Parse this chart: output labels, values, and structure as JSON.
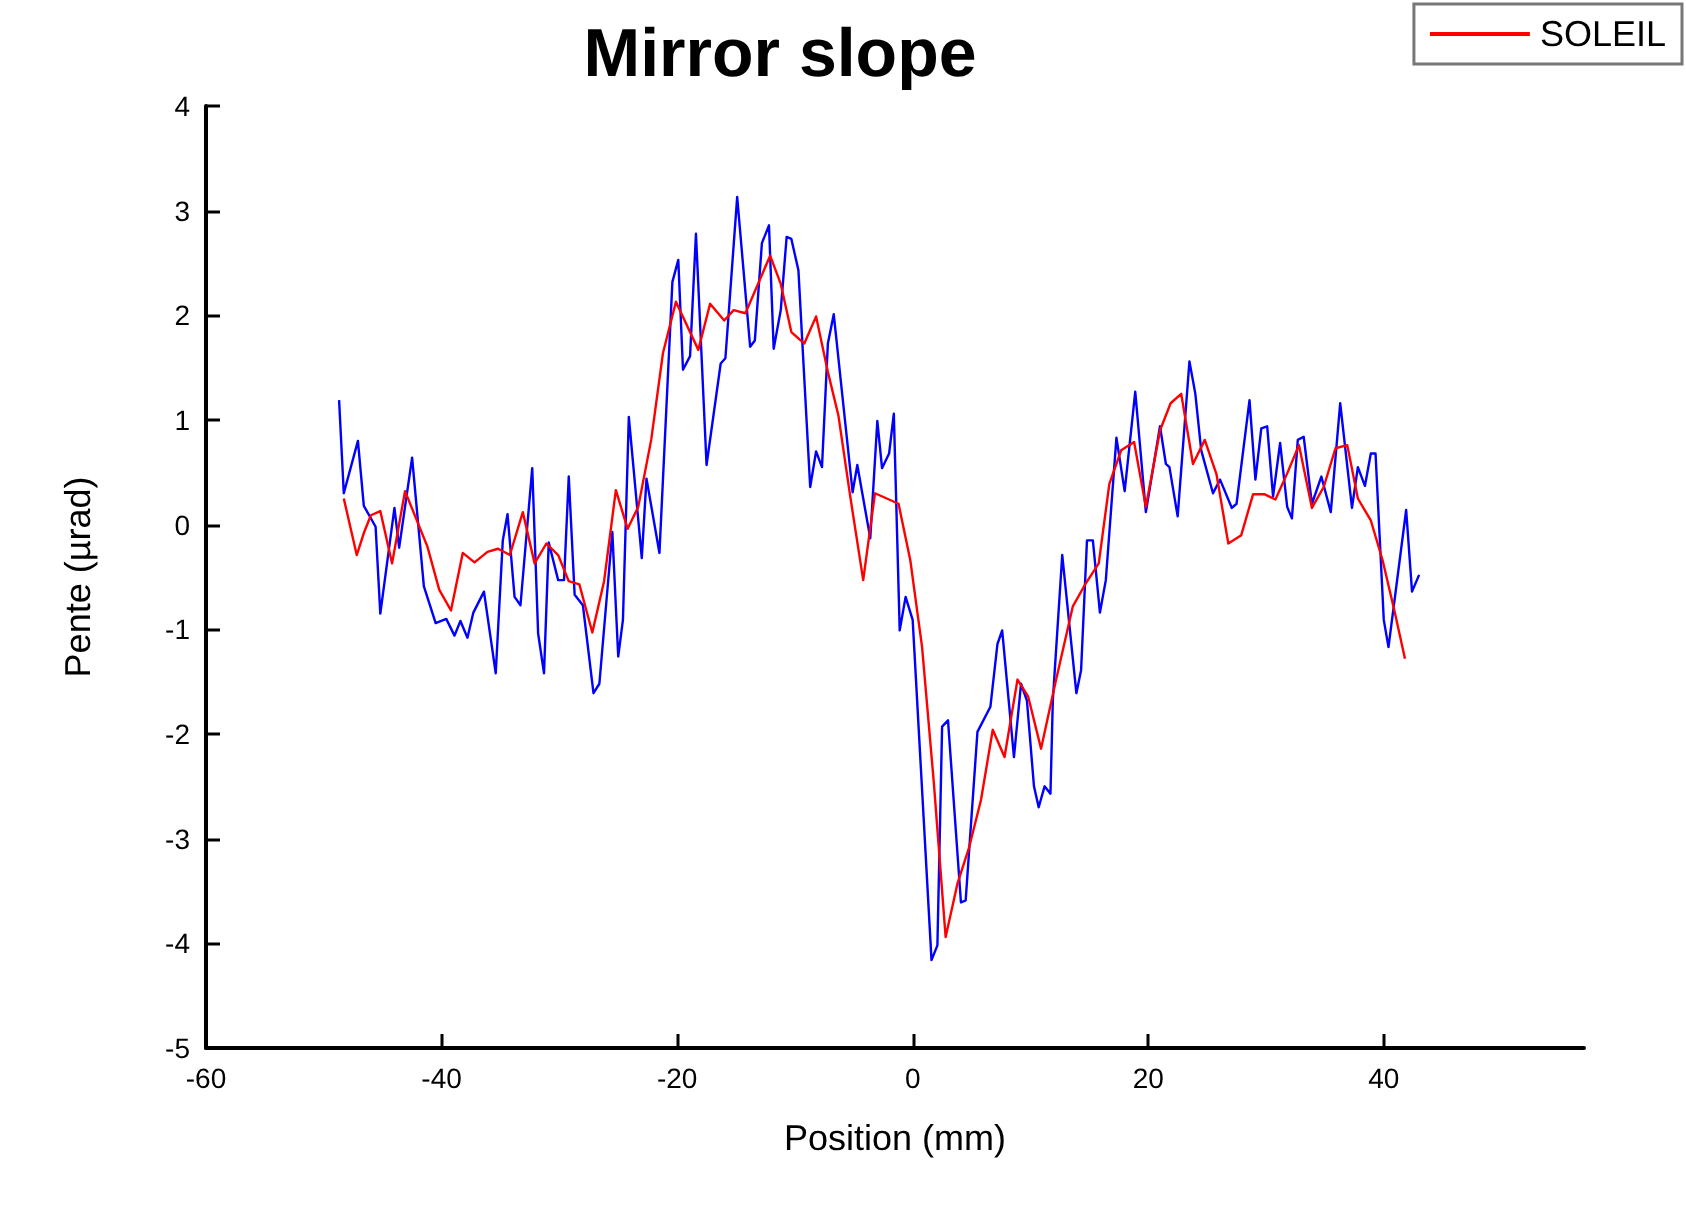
{
  "chart_data": {
    "type": "line",
    "title": "Mirror slope",
    "xlabel": "Position (mm)",
    "ylabel": "Pente (µrad)",
    "xlim": [
      -60,
      57
    ],
    "xticks": [
      -60,
      -40,
      -20,
      0,
      20,
      40
    ],
    "ylim": [
      -5,
      4
    ],
    "yticks": [
      -5,
      -4,
      -3,
      -2,
      -1,
      0,
      1,
      2,
      3,
      4
    ],
    "grid": false,
    "legend": "top right",
    "marker": "none",
    "series": [
      {
        "color": "#0000ff",
        "x": [
          -48.7,
          -48.3,
          -47.1,
          -46.6,
          -45.6,
          -45.2,
          -44.0,
          -43.6,
          -42.5,
          -41.5,
          -40.5,
          -39.6,
          -38.9,
          -38.4,
          -37.8,
          -37.3,
          -36.4,
          -35.4,
          -34.8,
          -34.4,
          -33.8,
          -33.3,
          -32.3,
          -31.8,
          -31.3,
          -30.9,
          -30.1,
          -29.6,
          -29.2,
          -28.7,
          -28.0,
          -27.1,
          -26.6,
          -25.5,
          -25.0,
          -24.6,
          -24.1,
          -23.0,
          -22.6,
          -21.5,
          -20.4,
          -19.9,
          -19.5,
          -18.9,
          -18.4,
          -17.5,
          -16.3,
          -15.9,
          -14.9,
          -13.8,
          -13.4,
          -12.8,
          -12.2,
          -11.8,
          -11.2,
          -10.7,
          -10.3,
          -9.7,
          -8.7,
          -8.2,
          -7.7,
          -7.2,
          -6.7,
          -5.1,
          -4.7,
          -3.6,
          -3.0,
          -2.6,
          -2.0,
          -1.6,
          -1.1,
          -0.6,
          0.0,
          1.6,
          2.1,
          2.5,
          3.0,
          4.1,
          4.5,
          5.5,
          6.6,
          7.2,
          7.6,
          8.6,
          9.2,
          9.7,
          10.3,
          10.7,
          11.2,
          11.7,
          11.9,
          12.7,
          13.9,
          14.3,
          14.8,
          15.3,
          15.9,
          16.4,
          17.3,
          18.0,
          18.9,
          19.8,
          21.0,
          21.5,
          21.8,
          22.5,
          23.5,
          24.0,
          24.5,
          25.5,
          26.1,
          27.1,
          27.5,
          28.6,
          29.1,
          29.6,
          30.1,
          30.6,
          31.2,
          31.8,
          32.2,
          32.7,
          33.2,
          33.9,
          34.7,
          35.5,
          36.3,
          37.3,
          37.8,
          38.4,
          38.9,
          39.3,
          40.0,
          40.4,
          41.9,
          42.4,
          43.0
        ],
        "values": [
          1.19,
          0.3,
          0.8,
          0.18,
          -0.02,
          -0.85,
          0.16,
          -0.22,
          0.64,
          -0.59,
          -0.94,
          -0.9,
          -1.06,
          -0.92,
          -1.08,
          -0.84,
          -0.64,
          -1.42,
          -0.15,
          0.1,
          -0.69,
          -0.77,
          0.54,
          -1.04,
          -1.42,
          -0.17,
          -0.53,
          -0.53,
          0.46,
          -0.67,
          -0.77,
          -1.61,
          -1.52,
          -0.07,
          -1.26,
          -0.91,
          1.03,
          -0.32,
          0.44,
          -0.27,
          2.32,
          2.53,
          1.48,
          1.61,
          2.78,
          0.57,
          1.54,
          1.59,
          3.13,
          1.7,
          1.76,
          2.69,
          2.86,
          1.68,
          2.05,
          2.75,
          2.73,
          2.43,
          0.36,
          0.7,
          0.55,
          1.73,
          2.01,
          0.31,
          0.57,
          -0.13,
          0.99,
          0.54,
          0.68,
          1.06,
          -1.01,
          -0.69,
          -0.91,
          -4.16,
          -4.02,
          -1.93,
          -1.87,
          -3.61,
          -3.59,
          -1.98,
          -1.74,
          -1.14,
          -1.01,
          -2.22,
          -1.52,
          -1.68,
          -2.5,
          -2.7,
          -2.5,
          -2.57,
          -1.68,
          -0.29,
          -1.61,
          -1.39,
          -0.15,
          -0.15,
          -0.84,
          -0.53,
          0.83,
          0.32,
          1.27,
          0.12,
          0.94,
          0.58,
          0.55,
          0.08,
          1.56,
          1.25,
          0.71,
          0.3,
          0.43,
          0.16,
          0.2,
          1.19,
          0.43,
          0.92,
          0.94,
          0.27,
          0.78,
          0.17,
          0.06,
          0.81,
          0.84,
          0.2,
          0.46,
          0.12,
          1.16,
          0.16,
          0.55,
          0.37,
          0.68,
          0.68,
          -0.91,
          -1.17,
          0.14,
          -0.64,
          -0.48
        ]
      },
      {
        "name": "SOLEIL",
        "color": "#ff0000",
        "x": [
          -48.3,
          -47.2,
          -46.6,
          -46.0,
          -45.2,
          -44.2,
          -43.1,
          -41.2,
          -40.2,
          -39.2,
          -38.2,
          -37.2,
          -36.1,
          -35.2,
          -34.2,
          -33.1,
          -32.1,
          -31.1,
          -30.1,
          -29.2,
          -28.3,
          -27.2,
          -26.2,
          -25.2,
          -24.2,
          -23.3,
          -22.2,
          -21.2,
          -20.1,
          -18.2,
          -17.2,
          -16.0,
          -15.2,
          -14.2,
          -12.1,
          -11.2,
          -10.3,
          -9.2,
          -8.2,
          -7.2,
          -6.3,
          -5.3,
          -4.2,
          -3.2,
          -1.2,
          -0.2,
          0.8,
          1.8,
          2.8,
          3.8,
          4.8,
          5.8,
          6.8,
          7.8,
          8.9,
          9.8,
          10.9,
          12.1,
          13.6,
          14.7,
          15.8,
          16.7,
          17.7,
          18.8,
          19.8,
          21.0,
          21.9,
          22.8,
          23.8,
          24.8,
          25.8,
          26.8,
          27.9,
          28.9,
          29.9,
          30.8,
          31.8,
          32.8,
          33.9,
          34.9,
          35.9,
          36.9,
          37.8,
          38.9,
          39.9,
          40.9,
          41.8
        ],
        "values": [
          0.25,
          -0.29,
          -0.08,
          0.09,
          0.13,
          -0.37,
          0.32,
          -0.21,
          -0.62,
          -0.82,
          -0.27,
          -0.36,
          -0.26,
          -0.23,
          -0.29,
          0.12,
          -0.37,
          -0.18,
          -0.29,
          -0.54,
          -0.57,
          -1.03,
          -0.54,
          0.33,
          -0.04,
          0.17,
          0.81,
          1.64,
          2.13,
          1.67,
          2.11,
          1.95,
          2.05,
          2.02,
          2.57,
          2.3,
          1.84,
          1.73,
          1.99,
          1.46,
          1.04,
          0.27,
          -0.53,
          0.3,
          0.2,
          -0.34,
          -1.17,
          -2.47,
          -3.94,
          -3.43,
          -3.08,
          -2.63,
          -1.96,
          -2.22,
          -1.48,
          -1.64,
          -2.14,
          -1.52,
          -0.78,
          -0.56,
          -0.37,
          0.39,
          0.71,
          0.79,
          0.17,
          0.9,
          1.16,
          1.25,
          0.58,
          0.81,
          0.48,
          -0.18,
          -0.1,
          0.29,
          0.29,
          0.24,
          0.49,
          0.76,
          0.16,
          0.36,
          0.73,
          0.76,
          0.25,
          0.04,
          -0.34,
          -0.82,
          -1.28
        ]
      }
    ]
  }
}
